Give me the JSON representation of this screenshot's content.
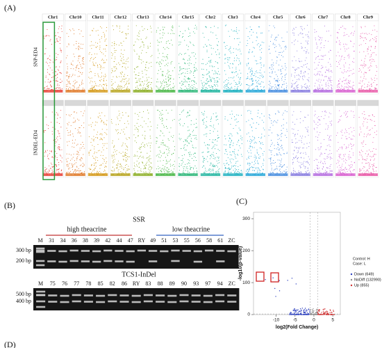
{
  "panel_a": {
    "label": "(A)",
    "rows": [
      "SNP-ED4",
      "INDEL-ED4"
    ],
    "chromosomes": [
      {
        "name": "Chr1",
        "color": "#e8443a"
      },
      {
        "name": "Chr10",
        "color": "#e07a2b"
      },
      {
        "name": "Chr11",
        "color": "#d49a1a"
      },
      {
        "name": "Chr12",
        "color": "#b8a520"
      },
      {
        "name": "Chr13",
        "color": "#8fb02a"
      },
      {
        "name": "Chr14",
        "color": "#4cb84a"
      },
      {
        "name": "Chr15",
        "color": "#2fb87a"
      },
      {
        "name": "Chr2",
        "color": "#22b5a0"
      },
      {
        "name": "Chr3",
        "color": "#1fb2c0"
      },
      {
        "name": "Chr4",
        "color": "#28a8d8"
      },
      {
        "name": "Chr5",
        "color": "#4a8fe0"
      },
      {
        "name": "Chr6",
        "color": "#8a7ee0"
      },
      {
        "name": "Chr7",
        "color": "#b56ee0"
      },
      {
        "name": "Chr8",
        "color": "#d860d0"
      },
      {
        "name": "Chr9",
        "color": "#e85aa8"
      }
    ]
  },
  "panel_b": {
    "label": "(B)",
    "gels": [
      {
        "title": "SSR",
        "groups": [
          "high theacrine",
          "low theacrine"
        ],
        "lanes": [
          "M",
          "31",
          "34",
          "36",
          "38",
          "39",
          "42",
          "44",
          "47",
          "RY",
          "49",
          "51",
          "53",
          "55",
          "56",
          "58",
          "61",
          "ZC"
        ],
        "markers": [
          "300 bp",
          "200 bp"
        ]
      },
      {
        "title": "TCS1-InDel",
        "lanes": [
          "M",
          "75",
          "76",
          "77",
          "78",
          "85",
          "82",
          "86",
          "RY",
          "83",
          "88",
          "89",
          "90",
          "93",
          "97",
          "94",
          "ZC"
        ],
        "markers": [
          "500 bp",
          "400 bp"
        ]
      }
    ]
  },
  "panel_c": {
    "label": "(C)",
    "x_label": "log2(Fold Change)",
    "y_label": "-log10(p-value)",
    "xlim": [
      -16,
      7
    ],
    "ylim": [
      0,
      320
    ],
    "xticks": [
      -10,
      -5,
      0,
      5
    ],
    "yticks": [
      0,
      100,
      200,
      300
    ],
    "legend_header": [
      "Control: H",
      "Case: L"
    ],
    "legend": [
      {
        "name": "Down (649)",
        "color": "#2b3fbf"
      },
      {
        "name": "NoDiff (132990)",
        "color": "#888888"
      },
      {
        "name": "Up (855)",
        "color": "#d03030"
      }
    ]
  },
  "panel_d": {
    "label": "(D)"
  }
}
